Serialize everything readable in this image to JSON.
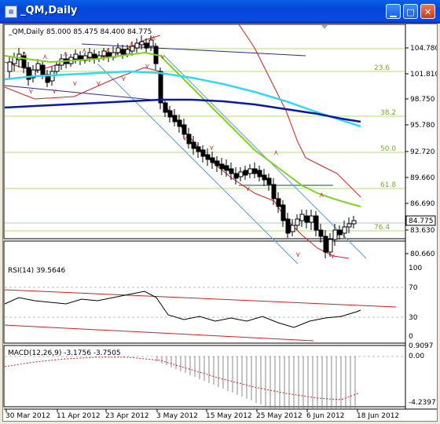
{
  "window": {
    "title": "_QM,Daily",
    "icon": "chart-window-icon",
    "buttons": [
      "minimize",
      "maximize",
      "close"
    ]
  },
  "main_header": "_QM,Daily  85.000 85.475 84.400 84.775",
  "price_axis": [
    "104.780",
    "101.810",
    "98.750",
    "95.780",
    "92.720",
    "89.660",
    "86.690",
    "83.630",
    "80.660"
  ],
  "current_price": "84.775",
  "fib_labels": [
    "23.6",
    "38.2",
    "50.0",
    "61.8",
    "76.4"
  ],
  "rsi": {
    "header": "RSI(14) 39.5646",
    "levels": [
      "100",
      "70",
      "30",
      "0"
    ]
  },
  "macd": {
    "header": "MACD(12,26,9) -3.1756 -3.7505",
    "axis": [
      "0.9097",
      "0.00",
      "-4.2397"
    ]
  },
  "dates": [
    "30 Mar 2012",
    "11 Apr 2012",
    "23 Apr 2012",
    "3 May 2012",
    "15 May 2012",
    "25 May 2012",
    "6 Jun 2012",
    "18 Jun 2012"
  ],
  "colors": {
    "titlebar": "#0a5fe8",
    "bull": "#ffffff",
    "bear": "#000000",
    "ma_green": "#7fd320",
    "ma_cyan": "#35d8f0",
    "ma_blue": "#0a1aa8",
    "bands": "#d02020",
    "fib": "#b8dc6a"
  }
}
